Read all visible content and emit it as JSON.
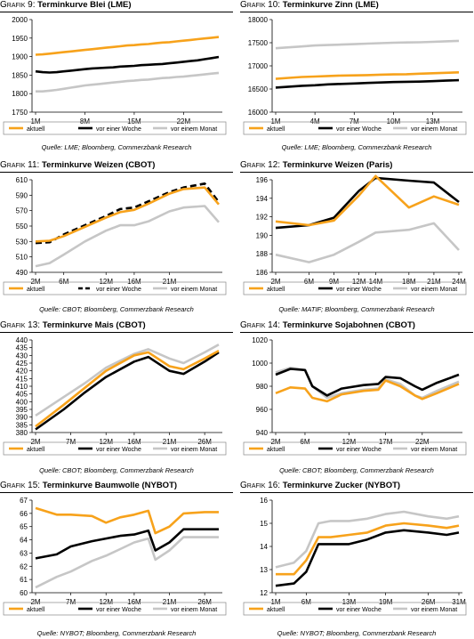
{
  "colors": {
    "aktuell": "#f7a21b",
    "vor_einer_woche": "#000000",
    "vor_einem_monat": "#c6c6c6"
  },
  "chart_data": [
    {
      "id": "g9",
      "type": "line",
      "title_prefix": "Grafik 9:",
      "title": "Terminkurve Blei (LME)",
      "x": [
        1,
        2,
        3,
        4,
        5,
        6,
        7,
        8,
        9,
        10,
        11,
        12,
        13,
        14,
        15,
        16,
        17,
        18,
        19,
        20,
        21,
        22,
        23,
        24,
        25,
        26,
        27
      ],
      "xticks": [
        1,
        8,
        15,
        22
      ],
      "xtick_labels": [
        "1M",
        "8M",
        "15M",
        "22M"
      ],
      "ylim": [
        1750,
        2000
      ],
      "yticks": [
        1750,
        1800,
        1850,
        1900,
        1950,
        2000
      ],
      "series": [
        {
          "name": "aktuell",
          "style": "solid",
          "values": [
            1905,
            1906,
            1908,
            1910,
            1912,
            1914,
            1916,
            1918,
            1920,
            1922,
            1924,
            1926,
            1928,
            1930,
            1931,
            1933,
            1934,
            1936,
            1938,
            1939,
            1941,
            1943,
            1945,
            1947,
            1949,
            1951,
            1953
          ]
        },
        {
          "name": "vor einer Woche",
          "style": "solid",
          "values": [
            1860,
            1858,
            1857,
            1858,
            1860,
            1862,
            1864,
            1866,
            1868,
            1869,
            1870,
            1871,
            1873,
            1874,
            1875,
            1877,
            1878,
            1879,
            1880,
            1882,
            1884,
            1886,
            1888,
            1890,
            1893,
            1896,
            1899
          ]
        },
        {
          "name": "vor einem Monat",
          "style": "solid",
          "values": [
            1806,
            1806,
            1808,
            1810,
            1813,
            1816,
            1819,
            1822,
            1824,
            1826,
            1828,
            1830,
            1832,
            1834,
            1835,
            1837,
            1838,
            1840,
            1842,
            1843,
            1845,
            1846,
            1848,
            1850,
            1852,
            1854,
            1856
          ]
        }
      ],
      "source": "Quelle: LME; Bloomberg, Commerzbank Research"
    },
    {
      "id": "g10",
      "type": "line",
      "title_prefix": "Grafik 10:",
      "title": "Terminkurve Zinn (LME)",
      "x": [
        1,
        2,
        3,
        4,
        5,
        6,
        7,
        8,
        9,
        10,
        11,
        12,
        13,
        14,
        15
      ],
      "xticks": [
        1,
        4,
        7,
        10,
        13
      ],
      "xtick_labels": [
        "1M",
        "4M",
        "7M",
        "10M",
        "13M"
      ],
      "ylim": [
        16000,
        18000
      ],
      "yticks": [
        16000,
        16500,
        17000,
        17500,
        18000
      ],
      "series": [
        {
          "name": "aktuell",
          "style": "solid",
          "values": [
            16720,
            16740,
            16760,
            16770,
            16780,
            16790,
            16795,
            16800,
            16810,
            16815,
            16820,
            16830,
            16840,
            16850,
            16860
          ]
        },
        {
          "name": "vor einer Woche",
          "style": "solid",
          "values": [
            16530,
            16550,
            16570,
            16580,
            16600,
            16610,
            16620,
            16630,
            16640,
            16650,
            16655,
            16660,
            16670,
            16680,
            16690
          ]
        },
        {
          "name": "vor einem Monat",
          "style": "solid",
          "values": [
            17380,
            17400,
            17420,
            17440,
            17450,
            17460,
            17470,
            17480,
            17490,
            17500,
            17505,
            17510,
            17520,
            17530,
            17540
          ]
        }
      ],
      "source": "Quelle: LME; Bloomberg, Commerzbank Research"
    },
    {
      "id": "g11",
      "type": "line",
      "title_prefix": "Grafik 11:",
      "title": "Terminkurve Weizen (CBOT)",
      "x": [
        2,
        4,
        6,
        9,
        12,
        14,
        16,
        18,
        21,
        23,
        26,
        28
      ],
      "xticks": [
        2,
        6,
        12,
        16,
        21
      ],
      "xtick_labels": [
        "2M",
        "6M",
        "12M",
        "16M",
        "21M"
      ],
      "ylim": [
        490,
        610
      ],
      "yticks": [
        490,
        510,
        530,
        550,
        570,
        590,
        610
      ],
      "series": [
        {
          "name": "aktuell",
          "style": "solid",
          "values": [
            530,
            531,
            537,
            549,
            561,
            568,
            571,
            579,
            592,
            598,
            600,
            578
          ]
        },
        {
          "name": "vor einer Woche",
          "style": "dashed",
          "values": [
            528,
            529,
            539,
            551,
            563,
            572,
            574,
            582,
            594,
            600,
            605,
            581
          ]
        },
        {
          "name": "vor einem Monat",
          "style": "solid",
          "values": [
            498,
            502,
            513,
            530,
            544,
            551,
            551,
            556,
            569,
            574,
            576,
            555
          ]
        }
      ],
      "source": "Quelle: CBOT; Bloomberg, Commerzbank Research"
    },
    {
      "id": "g12",
      "type": "line",
      "title_prefix": "Grafik 12:",
      "title": "Terminkurve Weizen (Paris)",
      "x": [
        2,
        6,
        9,
        12,
        14,
        18,
        21,
        24
      ],
      "xticks": [
        2,
        6,
        9,
        12,
        14,
        18,
        21,
        24
      ],
      "xtick_labels": [
        "2M",
        "6M",
        "9M",
        "12M",
        "14M",
        "18M",
        "21M",
        "24M"
      ],
      "ylim": [
        186,
        196
      ],
      "yticks": [
        186,
        188,
        190,
        192,
        194,
        196
      ],
      "series": [
        {
          "name": "aktuell",
          "style": "solid",
          "values": [
            191.5,
            191.1,
            191.6,
            194.3,
            196.4,
            193.0,
            194.2,
            193.3
          ]
        },
        {
          "name": "vor einer Woche",
          "style": "solid",
          "values": [
            190.8,
            191.1,
            191.9,
            194.8,
            196.2,
            195.9,
            195.7,
            193.6
          ]
        },
        {
          "name": "vor einem Monat",
          "style": "solid",
          "values": [
            187.9,
            187.1,
            187.9,
            189.3,
            190.3,
            190.6,
            191.3,
            188.4
          ]
        }
      ],
      "source": "Quelle: MATIF; Bloomberg, Commerzbank Research"
    },
    {
      "id": "g13",
      "type": "line",
      "title_prefix": "Grafik 13:",
      "title": "Terminkurve Mais (CBOT)",
      "x": [
        2,
        6,
        9,
        12,
        16,
        18,
        21,
        23,
        26,
        28
      ],
      "xticks": [
        2,
        7,
        12,
        16,
        21,
        26
      ],
      "xtick_labels": [
        "2M",
        "7M",
        "12M",
        "16M",
        "21M",
        "26M"
      ],
      "ylim": [
        380,
        440
      ],
      "yticks": [
        380,
        385,
        390,
        395,
        400,
        405,
        410,
        415,
        420,
        425,
        430,
        435,
        440
      ],
      "series": [
        {
          "name": "aktuell",
          "style": "solid",
          "values": [
            384,
            398,
            409,
            420,
            430,
            432,
            423,
            421,
            428,
            433
          ]
        },
        {
          "name": "vor einer Woche",
          "style": "solid",
          "values": [
            382,
            395,
            406,
            416,
            426,
            429,
            420,
            418,
            426,
            432
          ]
        },
        {
          "name": "vor einem Monat",
          "style": "solid",
          "values": [
            391,
            403,
            412,
            422,
            431,
            434,
            428,
            425,
            432,
            437
          ]
        }
      ],
      "source": "Quelle: CBOT; Bloomberg, Commerzbank Research"
    },
    {
      "id": "g14",
      "type": "line",
      "title_prefix": "Grafik 14:",
      "title": "Terminkurve Sojabohnen (CBOT)",
      "x": [
        2,
        4,
        6,
        7,
        9,
        11,
        14,
        16,
        17,
        19,
        21,
        22,
        24,
        27
      ],
      "xticks": [
        2,
        6,
        12,
        17,
        22
      ],
      "xtick_labels": [
        "2M",
        "6M",
        "12M",
        "17M",
        "22M"
      ],
      "ylim": [
        940,
        1020
      ],
      "yticks": [
        940,
        960,
        980,
        1000,
        1020
      ],
      "series": [
        {
          "name": "aktuell",
          "style": "solid",
          "values": [
            974,
            979,
            978,
            970,
            967,
            973,
            976,
            977,
            985,
            980,
            972,
            969,
            974,
            982
          ]
        },
        {
          "name": "vor einer Woche",
          "style": "solid",
          "values": [
            990,
            995,
            994,
            980,
            972,
            978,
            981,
            982,
            988,
            987,
            980,
            977,
            983,
            990
          ]
        },
        {
          "name": "vor einem Monat",
          "style": "solid",
          "values": [
            992,
            996,
            994,
            980,
            970,
            974,
            977,
            978,
            986,
            982,
            972,
            970,
            976,
            984
          ]
        }
      ],
      "source": "Quelle: CBOT; Bloomberg, Commerzbank Research"
    },
    {
      "id": "g15",
      "type": "line",
      "title_prefix": "Grafik 15:",
      "title": "Terminkurve Baumwolle (NYBOT)",
      "x": [
        2,
        5,
        7,
        10,
        12,
        14,
        16,
        18,
        19,
        21,
        23,
        26,
        28
      ],
      "xticks": [
        2,
        7,
        12,
        16,
        21,
        26
      ],
      "xtick_labels": [
        "2M",
        "7M",
        "12M",
        "16M",
        "21M",
        "26M"
      ],
      "ylim": [
        60,
        67
      ],
      "yticks": [
        60,
        61,
        62,
        63,
        64,
        65,
        66,
        67
      ],
      "series": [
        {
          "name": "aktuell",
          "style": "solid",
          "values": [
            66.4,
            65.9,
            65.9,
            65.8,
            65.3,
            65.7,
            65.9,
            66.2,
            64.5,
            65.0,
            66.0,
            66.1,
            66.1
          ]
        },
        {
          "name": "vor einer Woche",
          "style": "solid",
          "values": [
            62.6,
            62.9,
            63.5,
            63.9,
            64.1,
            64.3,
            64.4,
            64.7,
            63.2,
            63.8,
            64.8,
            64.8,
            64.8
          ]
        },
        {
          "name": "vor einem Monat",
          "style": "solid",
          "values": [
            60.4,
            61.2,
            61.6,
            62.4,
            62.8,
            63.3,
            63.8,
            64.1,
            62.5,
            63.2,
            64.2,
            64.2,
            64.2
          ]
        }
      ],
      "source": "Quelle: NYBOT; Bloomberg, Commerzbank Research"
    },
    {
      "id": "g16",
      "type": "line",
      "title_prefix": "Grafik 16:",
      "title": "Terminkurve Zucker (NYBOT)",
      "x": [
        1,
        4,
        6,
        8,
        10,
        13,
        16,
        19,
        22,
        26,
        29,
        31
      ],
      "xticks": [
        1,
        6,
        13,
        19,
        26,
        31
      ],
      "xtick_labels": [
        "1M",
        "6M",
        "13M",
        "19M",
        "26M",
        "31M"
      ],
      "ylim": [
        12,
        16
      ],
      "yticks": [
        12,
        13,
        14,
        15,
        16
      ],
      "series": [
        {
          "name": "aktuell",
          "style": "solid",
          "values": [
            12.8,
            12.8,
            13.4,
            14.4,
            14.4,
            14.5,
            14.6,
            14.9,
            15.0,
            14.9,
            14.8,
            14.9
          ]
        },
        {
          "name": "vor einer Woche",
          "style": "solid",
          "values": [
            12.3,
            12.4,
            12.9,
            14.1,
            14.1,
            14.1,
            14.3,
            14.6,
            14.7,
            14.6,
            14.5,
            14.6
          ]
        },
        {
          "name": "vor einem Monat",
          "style": "solid",
          "values": [
            13.1,
            13.3,
            13.8,
            15.0,
            15.1,
            15.1,
            15.2,
            15.4,
            15.5,
            15.3,
            15.2,
            15.3
          ]
        }
      ],
      "source": "Quelle: NYBOT; Bloomberg, Commerzbank Research"
    }
  ]
}
